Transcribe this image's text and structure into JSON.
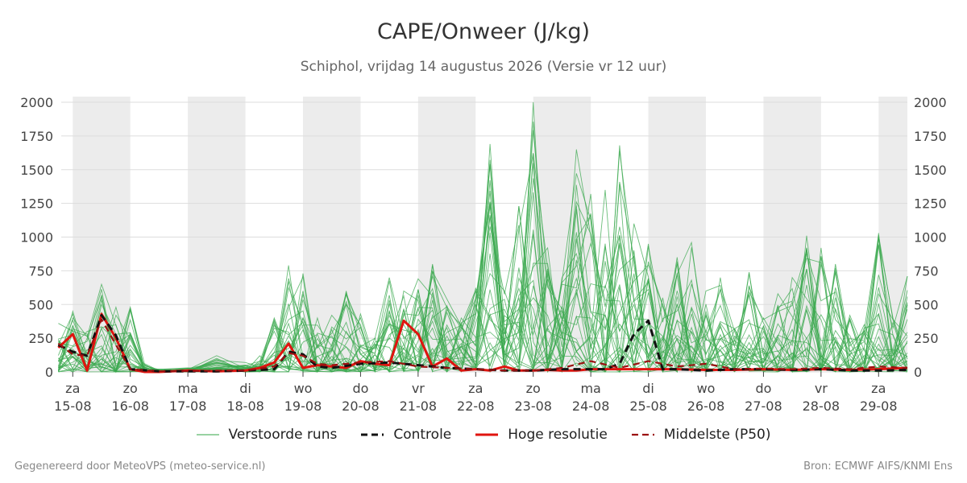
{
  "header": {
    "title": "CAPE/Onweer (J/kg)",
    "subtitle": "Schiphol, vrijdag 14 augustus 2026 (Versie vr 12 uur)"
  },
  "footer": {
    "left": "Gegenereerd door MeteoVPS (meteo-service.nl)",
    "right": "Bron: ECMWF AIFS/KNMI Ens"
  },
  "legend": [
    {
      "label": "Verstoorde runs",
      "color": "#5bb86a",
      "style": "thin"
    },
    {
      "label": "Controle",
      "color": "#111111",
      "style": "dashed"
    },
    {
      "label": "Hoge resolutie",
      "color": "#e0140f",
      "style": "solid"
    },
    {
      "label": "Middelste (P50)",
      "color": "#9b1010",
      "style": "dashed"
    }
  ],
  "colors": {
    "members": "#3aa84d",
    "control": "#111111",
    "hires": "#e0140f",
    "median": "#9b1010",
    "weekend_band": "#ececec",
    "grid": "#dddddd"
  },
  "chart_data": {
    "type": "line",
    "title": "CAPE/Onweer (J/kg)",
    "ylim": [
      0,
      2000
    ],
    "yticks": [
      0,
      250,
      500,
      750,
      1000,
      1250,
      1500,
      1750,
      2000
    ],
    "xlim": [
      -0.2,
      14.5
    ],
    "x_unit": "days since 15-08 00:00",
    "x_ticks": [
      {
        "day": "za",
        "date": "15-08"
      },
      {
        "day": "zo",
        "date": "16-08"
      },
      {
        "day": "ma",
        "date": "17-08"
      },
      {
        "day": "di",
        "date": "18-08"
      },
      {
        "day": "wo",
        "date": "19-08"
      },
      {
        "day": "do",
        "date": "20-08"
      },
      {
        "day": "vr",
        "date": "21-08"
      },
      {
        "day": "za",
        "date": "22-08"
      },
      {
        "day": "zo",
        "date": "23-08"
      },
      {
        "day": "ma",
        "date": "24-08"
      },
      {
        "day": "di",
        "date": "25-08"
      },
      {
        "day": "wo",
        "date": "26-08"
      },
      {
        "day": "do",
        "date": "27-08"
      },
      {
        "day": "vr",
        "date": "28-08"
      },
      {
        "day": "za",
        "date": "29-08"
      }
    ],
    "shaded_bands": [
      [
        0,
        1
      ],
      [
        2,
        3
      ],
      [
        4,
        5
      ],
      [
        6,
        7
      ],
      [
        8,
        9
      ],
      [
        10,
        11
      ],
      [
        12,
        13
      ],
      [
        14,
        14.5
      ]
    ],
    "grid": true,
    "legend_position": "bottom",
    "series": [
      {
        "name": "Hoge resolutie",
        "style": "solid",
        "color": "#e0140f",
        "x": [
          -0.25,
          0,
          0.25,
          0.5,
          0.75,
          1,
          1.25,
          1.5,
          2,
          2.5,
          3,
          3.25,
          3.5,
          3.75,
          4,
          4.25,
          4.5,
          4.75,
          5,
          5.25,
          5.5,
          5.75,
          6,
          6.25,
          6.5,
          6.75,
          7,
          7.25,
          7.5,
          7.75,
          8,
          8.25,
          8.5,
          8.75,
          9,
          9.5,
          10,
          10.5,
          11,
          11.5,
          12,
          12.5,
          13,
          13.5,
          14,
          14.5
        ],
        "values": [
          180,
          280,
          10,
          430,
          250,
          20,
          0,
          0,
          10,
          5,
          10,
          30,
          70,
          210,
          30,
          50,
          40,
          30,
          80,
          60,
          50,
          380,
          280,
          40,
          100,
          10,
          20,
          10,
          40,
          10,
          10,
          15,
          10,
          10,
          20,
          20,
          20,
          20,
          15,
          15,
          20,
          15,
          20,
          15,
          20,
          30
        ]
      },
      {
        "name": "Controle",
        "style": "dashed",
        "color": "#111111",
        "x": [
          -0.25,
          0,
          0.25,
          0.5,
          0.75,
          1,
          1.5,
          2,
          2.5,
          3,
          3.5,
          3.75,
          4,
          4.25,
          4.5,
          5,
          5.5,
          6,
          6.5,
          7,
          7.5,
          8,
          8.5,
          9,
          9.25,
          9.5,
          9.75,
          10,
          10.25,
          10.5,
          11,
          11.5,
          12,
          12.5,
          13,
          13.5,
          14,
          14.5
        ],
        "values": [
          200,
          150,
          120,
          420,
          270,
          20,
          5,
          5,
          5,
          10,
          20,
          150,
          130,
          40,
          30,
          60,
          70,
          50,
          30,
          20,
          10,
          10,
          20,
          20,
          20,
          60,
          280,
          380,
          20,
          20,
          10,
          20,
          20,
          15,
          20,
          10,
          10,
          15
        ]
      },
      {
        "name": "Middelste (P50)",
        "style": "dashed",
        "color": "#9b1010",
        "x": [
          -0.25,
          0,
          0.25,
          0.5,
          0.75,
          1,
          1.5,
          2,
          2.5,
          3,
          3.5,
          3.75,
          4,
          4.25,
          4.5,
          5,
          5.5,
          6,
          6.5,
          7,
          7.5,
          8,
          8.5,
          9,
          9.5,
          10,
          10.5,
          11,
          11.5,
          12,
          12.5,
          13,
          13.5,
          14,
          14.5
        ],
        "values": [
          210,
          130,
          120,
          390,
          200,
          20,
          5,
          5,
          10,
          10,
          40,
          140,
          120,
          60,
          50,
          70,
          80,
          40,
          30,
          20,
          10,
          10,
          30,
          80,
          30,
          80,
          40,
          60,
          20,
          25,
          20,
          30,
          20,
          40,
          30
        ]
      }
    ],
    "ensemble": {
      "name": "Verstoorde runs",
      "members": 30,
      "x": [
        -0.25,
        0,
        0.25,
        0.5,
        0.75,
        1,
        1.25,
        1.5,
        2,
        2.5,
        3,
        3.25,
        3.5,
        3.75,
        4,
        4.25,
        4.5,
        4.75,
        5,
        5.25,
        5.5,
        5.75,
        6,
        6.25,
        6.5,
        6.75,
        7,
        7.25,
        7.5,
        7.75,
        8,
        8.25,
        8.5,
        8.75,
        9,
        9.25,
        9.5,
        9.75,
        10,
        10.25,
        10.5,
        10.75,
        11,
        11.25,
        11.5,
        11.75,
        12,
        12.25,
        12.5,
        12.75,
        13,
        13.25,
        13.5,
        13.75,
        14,
        14.25,
        14.5
      ],
      "peak_envelope": [
        360,
        450,
        300,
        650,
        480,
        480,
        60,
        20,
        30,
        120,
        70,
        120,
        400,
        790,
        730,
        400,
        420,
        600,
        430,
        250,
        700,
        600,
        690,
        800,
        540,
        400,
        620,
        1690,
        600,
        1230,
        2040,
        920,
        700,
        1650,
        1320,
        1350,
        1680,
        1100,
        950,
        550,
        850,
        960,
        600,
        700,
        320,
        740,
        400,
        580,
        700,
        1010,
        920,
        800,
        420,
        350,
        1030,
        400,
        710
      ]
    }
  }
}
